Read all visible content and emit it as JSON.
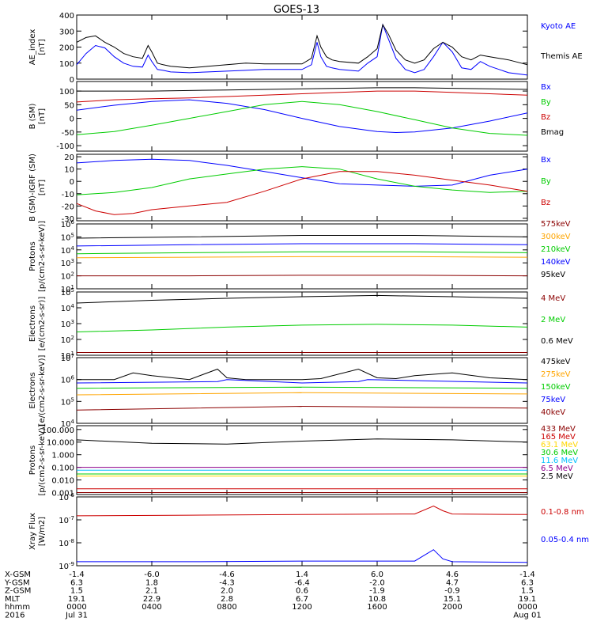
{
  "title": "GOES-13",
  "chart_data": [
    {
      "type": "line",
      "ylabel": "AE_index\n[nT]",
      "ylim": [
        0,
        400
      ],
      "yticks": [
        "0",
        "100",
        "200",
        "300",
        "400"
      ],
      "series": [
        {
          "name": "Kyoto AE",
          "color": "#0000ff",
          "x": [
            0,
            0.5,
            1,
            1.5,
            2,
            2.5,
            3,
            3.5,
            3.8,
            4,
            4.3,
            4.6,
            5,
            6,
            7,
            8,
            9,
            10,
            11,
            12,
            12.5,
            12.8,
            13,
            13.3,
            13.6,
            14,
            15,
            15.5,
            16,
            16.3,
            16.6,
            17,
            17.5,
            18,
            18.5,
            19,
            19.5,
            20,
            20.5,
            21,
            21.5,
            22,
            22.5,
            23,
            24
          ],
          "y": [
            90,
            160,
            210,
            195,
            140,
            100,
            80,
            75,
            150,
            110,
            60,
            55,
            45,
            40,
            45,
            50,
            55,
            60,
            60,
            60,
            90,
            230,
            140,
            80,
            70,
            60,
            50,
            100,
            140,
            340,
            250,
            130,
            60,
            40,
            60,
            140,
            230,
            170,
            70,
            60,
            110,
            80,
            60,
            40,
            25
          ]
        },
        {
          "name": "Themis AE",
          "color": "#000000",
          "x": [
            0,
            0.5,
            1,
            1.5,
            2,
            2.5,
            3,
            3.5,
            3.8,
            4,
            4.3,
            4.6,
            5,
            6,
            7,
            8,
            9,
            10,
            11,
            12,
            12.5,
            12.8,
            13,
            13.3,
            13.6,
            14,
            15,
            15.5,
            16,
            16.3,
            16.6,
            17,
            17.5,
            18,
            18.5,
            19,
            19.5,
            20,
            20.5,
            21,
            21.5,
            22,
            22.5,
            23,
            24
          ],
          "y": [
            230,
            260,
            270,
            230,
            200,
            160,
            140,
            130,
            210,
            170,
            100,
            90,
            80,
            70,
            80,
            90,
            100,
            95,
            95,
            95,
            130,
            270,
            200,
            140,
            120,
            110,
            100,
            140,
            190,
            340,
            280,
            180,
            120,
            100,
            120,
            190,
            230,
            200,
            140,
            120,
            150,
            140,
            130,
            120,
            90
          ]
        }
      ]
    },
    {
      "type": "line",
      "ylabel": "B (SM)\n[nT]",
      "ylim": [
        -120,
        135
      ],
      "yticks": [
        "-100",
        "-50",
        "0",
        "50",
        "100"
      ],
      "series": [
        {
          "name": "Bx",
          "color": "#0000ff",
          "x": [
            0,
            2,
            4,
            6,
            8,
            10,
            12,
            14,
            16,
            17,
            18,
            20,
            22,
            24
          ],
          "y": [
            30,
            48,
            62,
            68,
            55,
            32,
            0,
            -30,
            -48,
            -52,
            -50,
            -35,
            -10,
            20
          ]
        },
        {
          "name": "By",
          "color": "#00cc00",
          "x": [
            0,
            2,
            4,
            6,
            8,
            10,
            12,
            14,
            16,
            18,
            20,
            22,
            24
          ],
          "y": [
            -60,
            -48,
            -25,
            0,
            25,
            50,
            62,
            50,
            25,
            -5,
            -35,
            -55,
            -62
          ]
        },
        {
          "name": "Bz",
          "color": "#cc0000",
          "x": [
            0,
            2,
            4,
            6,
            8,
            10,
            12,
            14,
            16,
            18,
            20,
            22,
            24
          ],
          "y": [
            60,
            68,
            72,
            75,
            80,
            85,
            90,
            95,
            100,
            100,
            95,
            90,
            85
          ]
        },
        {
          "name": "Bmag",
          "color": "#000000",
          "x": [
            0,
            2,
            4,
            6,
            8,
            10,
            12,
            14,
            16,
            18,
            20,
            22,
            24
          ],
          "y": [
            100,
            100,
            100,
            102,
            104,
            106,
            108,
            110,
            112,
            112,
            110,
            108,
            106
          ]
        }
      ]
    },
    {
      "type": "line",
      "ylabel": "B (SM)-IGRF (SM)\n[nT]",
      "ylim": [
        -32,
        22
      ],
      "yticks": [
        "-30",
        "-20",
        "-10",
        "0",
        "10",
        "20"
      ],
      "series": [
        {
          "name": "Bx",
          "color": "#0000ff",
          "x": [
            0,
            2,
            4,
            6,
            8,
            10,
            12,
            14,
            16,
            18,
            20,
            22,
            24
          ],
          "y": [
            15,
            17,
            18,
            17,
            13,
            8,
            3,
            -2,
            -3,
            -4,
            -3,
            5,
            10
          ]
        },
        {
          "name": "By",
          "color": "#00cc00",
          "x": [
            0,
            2,
            4,
            6,
            8,
            10,
            12,
            14,
            16,
            18,
            20,
            22,
            24
          ],
          "y": [
            -11,
            -9,
            -5,
            2,
            6,
            10,
            12,
            10,
            2,
            -4,
            -7,
            -9,
            -8
          ]
        },
        {
          "name": "Bz",
          "color": "#cc0000",
          "x": [
            0,
            1,
            2,
            3,
            4,
            6,
            8,
            10,
            12,
            14,
            16,
            18,
            20,
            22,
            24
          ],
          "y": [
            -18,
            -24,
            -27,
            -26,
            -23,
            -20,
            -17,
            -8,
            2,
            8,
            8,
            5,
            1,
            -3,
            -8
          ]
        }
      ]
    },
    {
      "type": "line",
      "yscale": "log",
      "ylabel": "Protons\n[p/(cm2-s-sr-keV)]",
      "ylim": [
        10,
        1000000
      ],
      "yticks": [
        "10^1",
        "10^2",
        "10^3",
        "10^4",
        "10^5",
        "10^6"
      ],
      "series": [
        {
          "name": "575keV",
          "color": "#8b0000",
          "x": [
            0,
            6,
            12,
            18,
            24
          ],
          "y": [
            100,
            100,
            110,
            110,
            100
          ]
        },
        {
          "name": "300keV",
          "color": "#ffa500",
          "x": [
            0,
            6,
            12,
            18,
            24
          ],
          "y": [
            2500,
            2700,
            3000,
            3000,
            2700
          ]
        },
        {
          "name": "210keV",
          "color": "#00cc00",
          "x": [
            0,
            6,
            12,
            18,
            24
          ],
          "y": [
            5000,
            6000,
            7000,
            7000,
            6000
          ]
        },
        {
          "name": "140keV",
          "color": "#0000ff",
          "x": [
            0,
            6,
            12,
            18,
            24
          ],
          "y": [
            20000,
            25000,
            30000,
            30000,
            25000
          ]
        },
        {
          "name": "95keV",
          "color": "#000000",
          "x": [
            0,
            6,
            12,
            18,
            24
          ],
          "y": [
            80000,
            100000,
            130000,
            130000,
            100000
          ]
        }
      ]
    },
    {
      "type": "line",
      "yscale": "log",
      "ylabel": "Electrons\n[e/(cm2-s-sr)]",
      "ylim": [
        10,
        100000
      ],
      "yticks": [
        "10^1",
        "10^2",
        "10^3",
        "10^4",
        "10^5"
      ],
      "series": [
        {
          "name": "4 MeV",
          "color": "#8b0000",
          "x": [
            0,
            6,
            12,
            18,
            24
          ],
          "y": [
            15,
            15,
            15,
            15,
            15
          ]
        },
        {
          "name": "2 MeV",
          "color": "#00cc00",
          "x": [
            0,
            4,
            8,
            12,
            16,
            20,
            24
          ],
          "y": [
            300,
            400,
            600,
            800,
            900,
            800,
            600
          ]
        },
        {
          "name": "0.6 MeV",
          "color": "#000000",
          "x": [
            0,
            4,
            8,
            12,
            16,
            20,
            24
          ],
          "y": [
            20000,
            30000,
            40000,
            50000,
            60000,
            50000,
            40000
          ]
        }
      ]
    },
    {
      "type": "line",
      "yscale": "log",
      "ylabel": "Electrons\n[e/(cm2-s-sr-keV)]",
      "ylim": [
        10000,
        10000000
      ],
      "yticks": [
        "10^4",
        "10^5",
        "10^6",
        "10^7"
      ],
      "series": [
        {
          "name": "475keV",
          "color": "#000000",
          "x": [
            0,
            2,
            3,
            4,
            6,
            7.5,
            8,
            9,
            10,
            12,
            13,
            15,
            16,
            17,
            18,
            20,
            22,
            24
          ],
          "y": [
            1000000,
            1000000,
            2000000,
            1500000,
            1000000,
            3000000,
            1200000,
            1000000,
            1000000,
            1000000,
            1100000,
            3000000,
            1200000,
            1100000,
            1500000,
            2000000,
            1200000,
            1000000
          ]
        },
        {
          "name": "275keV",
          "color": "#ffa500",
          "x": [
            0,
            12,
            24
          ],
          "y": [
            200000,
            250000,
            220000
          ]
        },
        {
          "name": "150keV",
          "color": "#00cc00",
          "x": [
            0,
            12,
            24
          ],
          "y": [
            400000,
            450000,
            400000
          ]
        },
        {
          "name": "75keV",
          "color": "#0000ff",
          "x": [
            0,
            7.5,
            8,
            12,
            15,
            15.5,
            24
          ],
          "y": [
            700000,
            800000,
            1000000,
            700000,
            800000,
            1000000,
            700000
          ]
        },
        {
          "name": "40keV",
          "color": "#8b0000",
          "x": [
            0,
            12,
            24
          ],
          "y": [
            40000,
            60000,
            50000
          ]
        }
      ]
    },
    {
      "type": "line",
      "yscale": "log",
      "ylabel": "Protons\n[p/(cm2-s-sr-keV)]",
      "ylim": [
        0.0007,
        200
      ],
      "yticks": [
        "0.001",
        "0.010",
        "0.100",
        "1.000",
        "10.000",
        "100.000"
      ],
      "series": [
        {
          "name": "433 MeV",
          "color": "#8b0000",
          "x": [
            0,
            12,
            24
          ],
          "y": [
            0.001,
            0.001,
            0.001
          ]
        },
        {
          "name": "165 MeV",
          "color": "#cc0000",
          "x": [
            0,
            12,
            24
          ],
          "y": [
            0.002,
            0.002,
            0.002
          ]
        },
        {
          "name": "63.1 MeV",
          "color": "#ffd700",
          "x": [
            0,
            12,
            24
          ],
          "y": [
            0.02,
            0.02,
            0.02
          ]
        },
        {
          "name": "30.6 MeV",
          "color": "#00cc00",
          "x": [
            0,
            12,
            24
          ],
          "y": [
            0.03,
            0.03,
            0.03
          ]
        },
        {
          "name": "11.6 MeV",
          "color": "#00bfff",
          "x": [
            0,
            12,
            24
          ],
          "y": [
            0.06,
            0.06,
            0.06
          ]
        },
        {
          "name": "6.5 MeV",
          "color": "#8b008b",
          "x": [
            0,
            12,
            24
          ],
          "y": [
            0.1,
            0.1,
            0.1
          ]
        },
        {
          "name": "2.5 MeV",
          "color": "#000000",
          "x": [
            0,
            4,
            8,
            12,
            16,
            20,
            24
          ],
          "y": [
            15,
            8,
            7,
            12,
            18,
            15,
            10
          ]
        }
      ]
    },
    {
      "type": "line",
      "yscale": "log",
      "ylabel": "Xray Flux\n[W/m2]",
      "ylim": [
        1e-09,
        1e-06
      ],
      "yticks": [
        "10^-9",
        "10^-8",
        "10^-7",
        "10^-6"
      ],
      "series": [
        {
          "name": "0.1-0.8 nm",
          "color": "#cc0000",
          "x": [
            0,
            6,
            12,
            18,
            19,
            19.5,
            20,
            24
          ],
          "y": [
            1.5e-07,
            1.6e-07,
            1.7e-07,
            1.8e-07,
            4e-07,
            2.5e-07,
            1.8e-07,
            1.7e-07
          ]
        },
        {
          "name": "0.05-0.4 nm",
          "color": "#0000ff",
          "x": [
            0,
            6,
            12,
            18,
            19,
            19.5,
            20,
            24
          ],
          "y": [
            1.5e-09,
            1.5e-09,
            1.6e-09,
            1.6e-09,
            5e-09,
            2e-09,
            1.5e-09,
            1.4e-09
          ]
        }
      ]
    }
  ],
  "xaxis": {
    "row_labels": [
      "X-GSM",
      "Y-GSM",
      "Z-GSM",
      "MLT",
      "hhmm",
      "2016"
    ],
    "columns": [
      [
        "-1.4",
        "6.3",
        "1.5",
        "19.1",
        "0000",
        "Jul 31"
      ],
      [
        "-6.0",
        "1.8",
        "2.1",
        "22.9",
        "0400",
        ""
      ],
      [
        "-4.6",
        "-4.3",
        "2.0",
        "2.8",
        "0800",
        ""
      ],
      [
        "1.4",
        "-6.4",
        "0.6",
        "6.7",
        "1200",
        ""
      ],
      [
        "6.0",
        "-2.0",
        "-1.9",
        "10.8",
        "1600",
        ""
      ],
      [
        "4.6",
        "4.7",
        "-0.9",
        "15.1",
        "2000",
        ""
      ],
      [
        "-1.4",
        "6.3",
        "1.5",
        "19.1",
        "0000",
        "Aug 01"
      ]
    ]
  }
}
